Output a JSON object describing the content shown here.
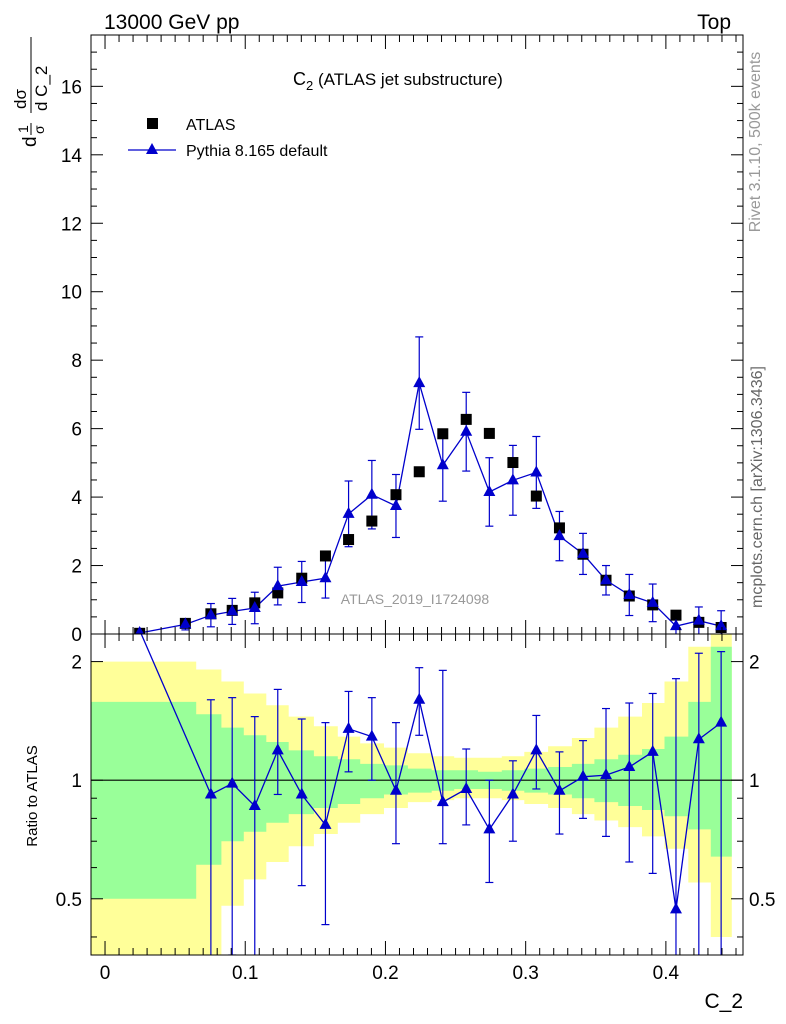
{
  "header": {
    "left": "13000 GeV pp",
    "right": "Top"
  },
  "side_text": {
    "rivet": "Rivet 3.1.10,  500k events",
    "source": "mcplots.cern.ch [arXiv:1306.3436]"
  },
  "colors": {
    "data": "#000000",
    "mc": "#0000cc",
    "band_inner": "#99ff99",
    "band_outer": "#ffff99",
    "watermark": "#999999"
  },
  "chart_data": [
    {
      "type": "scatter",
      "title_main": "C",
      "title_sub": "2",
      "title_rest": " (ATLAS jet substructure)",
      "ylabel": "d1/σ dσ/d C_2",
      "ylabel_parts": [
        "d",
        "1",
        "σ",
        "dσ",
        "d C_2"
      ],
      "watermark": "ATLAS_2019_I1724098",
      "xlim": [
        -0.01,
        0.455
      ],
      "ylim": [
        0,
        17.5
      ],
      "y_ticks": [
        0,
        2,
        4,
        6,
        8,
        10,
        12,
        14,
        16
      ],
      "legend": [
        "ATLAS",
        "Pythia 8.165 default"
      ],
      "legend_position": "top-left",
      "x": [
        0.0247,
        0.0573,
        0.0755,
        0.0907,
        0.1068,
        0.1232,
        0.1403,
        0.1572,
        0.1737,
        0.1903,
        0.2075,
        0.2241,
        0.2409,
        0.2576,
        0.2741,
        0.2909,
        0.3076,
        0.3241,
        0.3409,
        0.3573,
        0.3739,
        0.3906,
        0.4072,
        0.4235,
        0.4394
      ],
      "series": [
        {
          "name": "ATLAS",
          "marker": "square",
          "values": [
            0.02,
            0.31,
            0.59,
            0.69,
            0.91,
            1.2,
            1.63,
            2.28,
            2.76,
            3.3,
            4.07,
            4.74,
            5.85,
            6.27,
            5.86,
            5.01,
            4.03,
            3.1,
            2.33,
            1.57,
            1.11,
            0.85,
            0.55,
            0.34,
            0.19
          ]
        },
        {
          "name": "Pythia 8.165 default",
          "marker": "triangle",
          "values": [
            0.03,
            0.28,
            0.55,
            0.66,
            0.76,
            1.4,
            1.52,
            1.63,
            3.51,
            4.07,
            3.74,
            7.33,
            4.93,
            5.91,
            4.15,
            4.49,
            4.72,
            2.86,
            2.34,
            1.57,
            1.14,
            0.91,
            0.23,
            0.39,
            0.23
          ],
          "err": [
            0.02,
            0.16,
            0.34,
            0.38,
            0.46,
            0.55,
            0.6,
            0.58,
            0.96,
            1.0,
            0.92,
            1.35,
            1.05,
            1.15,
            1.0,
            1.02,
            1.05,
            0.72,
            0.6,
            0.43,
            0.6,
            0.55,
            0.35,
            0.4,
            0.45
          ]
        }
      ]
    },
    {
      "type": "line",
      "ylabel": "Ratio to ATLAS",
      "xlabel": "C_2",
      "xlim": [
        -0.01,
        0.455
      ],
      "ylim": [
        0.36,
        2.35
      ],
      "x_ticks": [
        0,
        0.1,
        0.2,
        0.3,
        0.4
      ],
      "y_ticks": [
        0.5,
        1,
        2
      ],
      "reference_line": 1,
      "bin_edges": [
        -0.01,
        0.05,
        0.065,
        0.083,
        0.099,
        0.115,
        0.131,
        0.149,
        0.166,
        0.182,
        0.199,
        0.216,
        0.233,
        0.249,
        0.266,
        0.283,
        0.299,
        0.316,
        0.333,
        0.349,
        0.366,
        0.383,
        0.399,
        0.416,
        0.432,
        0.447
      ],
      "band_inner": {
        "lo": [
          0.5,
          0.5,
          0.61,
          0.7,
          0.74,
          0.78,
          0.82,
          0.85,
          0.87,
          0.9,
          0.92,
          0.93,
          0.94,
          0.95,
          0.95,
          0.94,
          0.93,
          0.92,
          0.9,
          0.88,
          0.86,
          0.84,
          0.81,
          0.75,
          0.64
        ],
        "hi": [
          1.58,
          1.58,
          1.47,
          1.36,
          1.3,
          1.25,
          1.19,
          1.15,
          1.13,
          1.1,
          1.09,
          1.07,
          1.06,
          1.06,
          1.05,
          1.06,
          1.07,
          1.08,
          1.1,
          1.13,
          1.16,
          1.2,
          1.29,
          1.58,
          2.18
        ]
      },
      "band_outer": {
        "lo": [
          0.3,
          0.3,
          0.36,
          0.48,
          0.56,
          0.62,
          0.68,
          0.73,
          0.78,
          0.82,
          0.85,
          0.88,
          0.89,
          0.9,
          0.9,
          0.89,
          0.87,
          0.85,
          0.82,
          0.79,
          0.76,
          0.72,
          0.67,
          0.55,
          0.4
        ],
        "hi": [
          2.0,
          2.0,
          1.91,
          1.78,
          1.66,
          1.55,
          1.45,
          1.37,
          1.29,
          1.24,
          1.21,
          1.17,
          1.15,
          1.14,
          1.14,
          1.15,
          1.18,
          1.22,
          1.28,
          1.36,
          1.45,
          1.57,
          1.78,
          2.18,
          2.6
        ]
      },
      "series": [
        {
          "name": "Pythia 8.165 default / ATLAS",
          "x": [
            0.0247,
            0.0755,
            0.0907,
            0.1068,
            0.1232,
            0.1403,
            0.1572,
            0.1737,
            0.1903,
            0.2075,
            0.2241,
            0.2409,
            0.2576,
            0.2741,
            0.2909,
            0.3076,
            0.3241,
            0.3409,
            0.3573,
            0.3739,
            0.3906,
            0.4072,
            0.4235,
            0.4394
          ],
          "values": [
            2.4,
            0.92,
            0.98,
            0.86,
            1.19,
            0.92,
            0.77,
            1.35,
            1.29,
            0.94,
            1.6,
            0.88,
            0.95,
            0.75,
            0.92,
            1.19,
            0.94,
            1.02,
            1.03,
            1.08,
            1.18,
            0.47,
            1.27,
            1.4
          ],
          "lo": [
            2.4,
            0.3,
            0.36,
            0.3,
            0.92,
            0.54,
            0.43,
            1.05,
            1.0,
            0.69,
            1.3,
            0.69,
            0.77,
            0.55,
            0.7,
            0.95,
            0.73,
            0.8,
            0.72,
            0.62,
            0.58,
            0.3,
            0.25,
            0.25
          ],
          "hi": [
            2.4,
            1.6,
            1.62,
            1.45,
            1.7,
            1.43,
            1.4,
            1.68,
            1.62,
            1.4,
            1.93,
            1.9,
            1.2,
            1.0,
            1.12,
            1.46,
            1.18,
            1.26,
            1.52,
            1.57,
            1.66,
            1.81,
            2.1,
            2.12
          ]
        }
      ]
    }
  ]
}
